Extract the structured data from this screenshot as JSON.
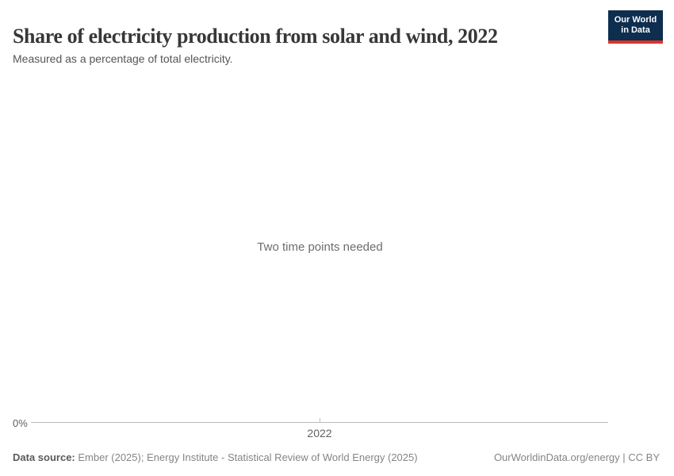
{
  "header": {
    "title": "Share of electricity production from solar and wind, 2022",
    "subtitle": "Measured as a percentage of total electricity.",
    "logo": {
      "line1": "Our World",
      "line2": "in Data",
      "bg_color": "#0d2e4e",
      "stripe_color": "#d7352b",
      "text_color": "#ffffff"
    }
  },
  "chart": {
    "empty_message": "Two time points needed",
    "y_axis_label": "0%",
    "x_tick_label": "2022",
    "axis_color": "#bdbdbd"
  },
  "footer": {
    "source_label": "Data source:",
    "source_text": " Ember (2025); Energy Institute - Statistical Review of World Energy (2025)",
    "right_text": "OurWorldinData.org/energy | CC BY"
  },
  "chart_data": {
    "type": "line",
    "title": "Share of electricity production from solar and wind, 2022",
    "subtitle": "Measured as a percentage of total electricity.",
    "series": [],
    "x": [],
    "x_ticks": [
      "2022"
    ],
    "y_ticks": [
      "0%"
    ],
    "ylim_min_label": "0%",
    "grid": false,
    "legend": "none",
    "annotations": [
      "Two time points needed"
    ]
  }
}
